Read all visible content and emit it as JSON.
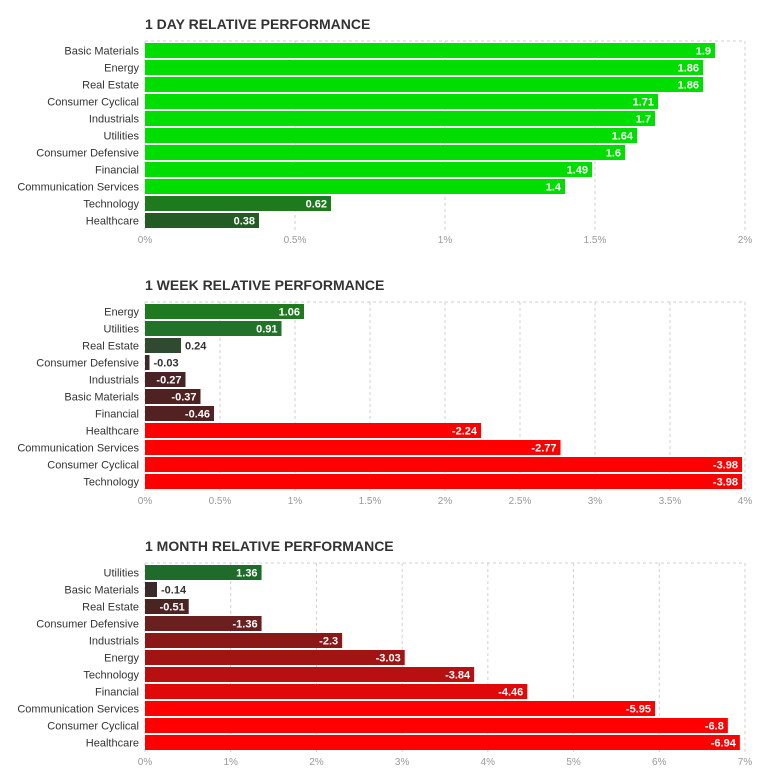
{
  "chart_data": [
    {
      "type": "bar",
      "orientation": "horizontal",
      "title": "1 DAY RELATIVE PERFORMANCE",
      "categories": [
        "Basic Materials",
        "Energy",
        "Real Estate",
        "Consumer Cyclical",
        "Industrials",
        "Utilities",
        "Consumer Defensive",
        "Financial",
        "Communication Services",
        "Technology",
        "Healthcare"
      ],
      "values": [
        1.9,
        1.86,
        1.86,
        1.71,
        1.7,
        1.64,
        1.6,
        1.49,
        1.4,
        0.62,
        0.38
      ],
      "value_labels": [
        "1.9",
        "1.86",
        "1.86",
        "1.71",
        "1.7",
        "1.64",
        "1.6",
        "1.49",
        "1.4",
        "0.62",
        "0.38"
      ],
      "xlim": [
        0,
        2
      ],
      "ticks": [
        0,
        0.5,
        1,
        1.5,
        2
      ],
      "tick_labels": [
        "0%",
        "0.5%",
        "1%",
        "1.5%",
        "2%"
      ],
      "bar_colors": [
        "#00dd00",
        "#00dd00",
        "#00dd00",
        "#00dd00",
        "#00dd00",
        "#00dd00",
        "#00dd00",
        "#00dd00",
        "#00dd00",
        "#1f7a1f",
        "#235c23"
      ],
      "grid": true
    },
    {
      "type": "bar",
      "orientation": "horizontal",
      "title": "1 WEEK RELATIVE PERFORMANCE",
      "categories": [
        "Energy",
        "Utilities",
        "Real Estate",
        "Consumer Defensive",
        "Industrials",
        "Basic Materials",
        "Financial",
        "Healthcare",
        "Communication Services",
        "Consumer Cyclical",
        "Technology"
      ],
      "values": [
        1.06,
        0.91,
        0.24,
        -0.03,
        -0.27,
        -0.37,
        -0.46,
        -2.24,
        -2.77,
        -3.98,
        -3.98
      ],
      "value_labels": [
        "1.06",
        "0.91",
        "0.24",
        "-0.03",
        "-0.27",
        "-0.37",
        "-0.46",
        "-2.24",
        "-2.77",
        "-3.98",
        "-3.98"
      ],
      "xlim": [
        0,
        4
      ],
      "ticks": [
        0,
        0.5,
        1,
        1.5,
        2,
        2.5,
        3,
        3.5,
        4
      ],
      "tick_labels": [
        "0%",
        "0.5%",
        "1%",
        "1.5%",
        "2%",
        "2.5%",
        "3%",
        "3.5%",
        "4%"
      ],
      "bar_colors": [
        "#1f7a1f",
        "#23722a",
        "#2f4a2f",
        "#3a2a2a",
        "#4a2424",
        "#4e2222",
        "#522222",
        "#ff0000",
        "#ff0000",
        "#ff0000",
        "#ff0000"
      ],
      "grid": true
    },
    {
      "type": "bar",
      "orientation": "horizontal",
      "title": "1 MONTH RELATIVE PERFORMANCE",
      "categories": [
        "Utilities",
        "Basic Materials",
        "Real Estate",
        "Consumer Defensive",
        "Industrials",
        "Energy",
        "Technology",
        "Financial",
        "Communication Services",
        "Consumer Cyclical",
        "Healthcare"
      ],
      "values": [
        1.36,
        -0.14,
        -0.51,
        -1.36,
        -2.3,
        -3.03,
        -3.84,
        -4.46,
        -5.95,
        -6.8,
        -6.94
      ],
      "value_labels": [
        "1.36",
        "-0.14",
        "-0.51",
        "-1.36",
        "-2.3",
        "-3.03",
        "-3.84",
        "-4.46",
        "-5.95",
        "-6.8",
        "-6.94"
      ],
      "xlim": [
        0,
        7
      ],
      "ticks": [
        0,
        1,
        2,
        3,
        4,
        5,
        6,
        7
      ],
      "tick_labels": [
        "0%",
        "1%",
        "2%",
        "3%",
        "4%",
        "5%",
        "6%",
        "7%"
      ],
      "bar_colors": [
        "#1f6b2a",
        "#3a2a2a",
        "#4a2323",
        "#6b2020",
        "#8a1818",
        "#a01414",
        "#b81010",
        "#e00808",
        "#ff0000",
        "#ff0000",
        "#ff0000"
      ],
      "grid": true
    }
  ]
}
